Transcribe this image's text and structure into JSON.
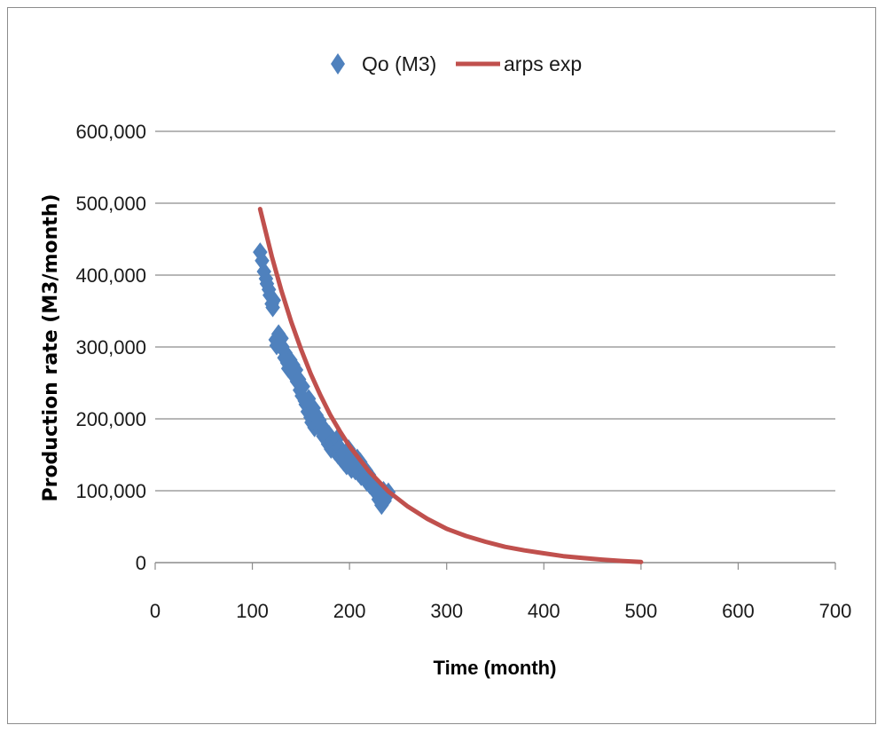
{
  "chart_data": {
    "type": "scatter",
    "title": "",
    "xlabel": "Time (month)",
    "ylabel": "Production rate (M3/month)",
    "xlim": [
      0,
      700
    ],
    "ylim": [
      0,
      600000
    ],
    "x_ticks": [
      0,
      100,
      200,
      300,
      400,
      500,
      600,
      700
    ],
    "y_ticks": [
      0,
      100000,
      200000,
      300000,
      400000,
      500000,
      600000
    ],
    "x_tick_labels": [
      "0",
      "100",
      "200",
      "300",
      "400",
      "500",
      "600",
      "700"
    ],
    "y_tick_labels": [
      "0",
      "100,000",
      "200,000",
      "300,000",
      "400,000",
      "500,000",
      "600,000"
    ],
    "grid": "horizontal",
    "legend_position": "top-center",
    "series": [
      {
        "name": "Qo (M3)",
        "kind": "scatter",
        "marker": "diamond",
        "color": "#4f81bd",
        "x": [
          108,
          110,
          112,
          114,
          115,
          117,
          118,
          120,
          121,
          122,
          124,
          125,
          127,
          128,
          130,
          131,
          133,
          134,
          136,
          137,
          139,
          140,
          142,
          143,
          145,
          146,
          148,
          149,
          151,
          152,
          154,
          155,
          157,
          158,
          160,
          161,
          163,
          164,
          166,
          167,
          169,
          170,
          172,
          173,
          175,
          176,
          178,
          179,
          181,
          182,
          184,
          185,
          187,
          188,
          190,
          191,
          193,
          194,
          196,
          197,
          199,
          200,
          202,
          203,
          205,
          206,
          208,
          209,
          211,
          212,
          214,
          215,
          217,
          218,
          220,
          221,
          223,
          224,
          226,
          227,
          229,
          230,
          232,
          233,
          235,
          236,
          238,
          240
        ],
        "y": [
          432000,
          420000,
          405000,
          395000,
          388000,
          380000,
          372000,
          360000,
          355000,
          365000,
          310000,
          302000,
          318000,
          305000,
          312000,
          300000,
          285000,
          292000,
          278000,
          270000,
          282000,
          265000,
          275000,
          260000,
          268000,
          252000,
          255000,
          240000,
          232000,
          245000,
          225000,
          220000,
          210000,
          228000,
          202000,
          195000,
          215000,
          188000,
          205000,
          192000,
          198000,
          185000,
          190000,
          176000,
          182000,
          172000,
          165000,
          178000,
          158000,
          168000,
          162000,
          155000,
          172000,
          150000,
          160000,
          145000,
          152000,
          140000,
          148000,
          135000,
          158000,
          142000,
          130000,
          150000,
          138000,
          128000,
          145000,
          125000,
          140000,
          120000,
          132000,
          118000,
          128000,
          112000,
          122000,
          108000,
          115000,
          105000,
          110000,
          98000,
          102000,
          88000,
          95000,
          80000,
          100000,
          86000,
          92000,
          98000
        ]
      },
      {
        "name": "arps exp",
        "kind": "line",
        "color": "#c0504d",
        "x": [
          108,
          120,
          130,
          140,
          150,
          160,
          170,
          180,
          190,
          200,
          220,
          240,
          260,
          280,
          300,
          320,
          340,
          360,
          380,
          400,
          420,
          440,
          460,
          480,
          500
        ],
        "y": [
          492000,
          426000,
          378000,
          335000,
          297000,
          263000,
          233000,
          206000,
          183000,
          162000,
          127000,
          99000,
          78000,
          61000,
          47000,
          37000,
          29000,
          22000,
          17000,
          13000,
          9000,
          6500,
          4200,
          2300,
          900
        ]
      }
    ]
  }
}
